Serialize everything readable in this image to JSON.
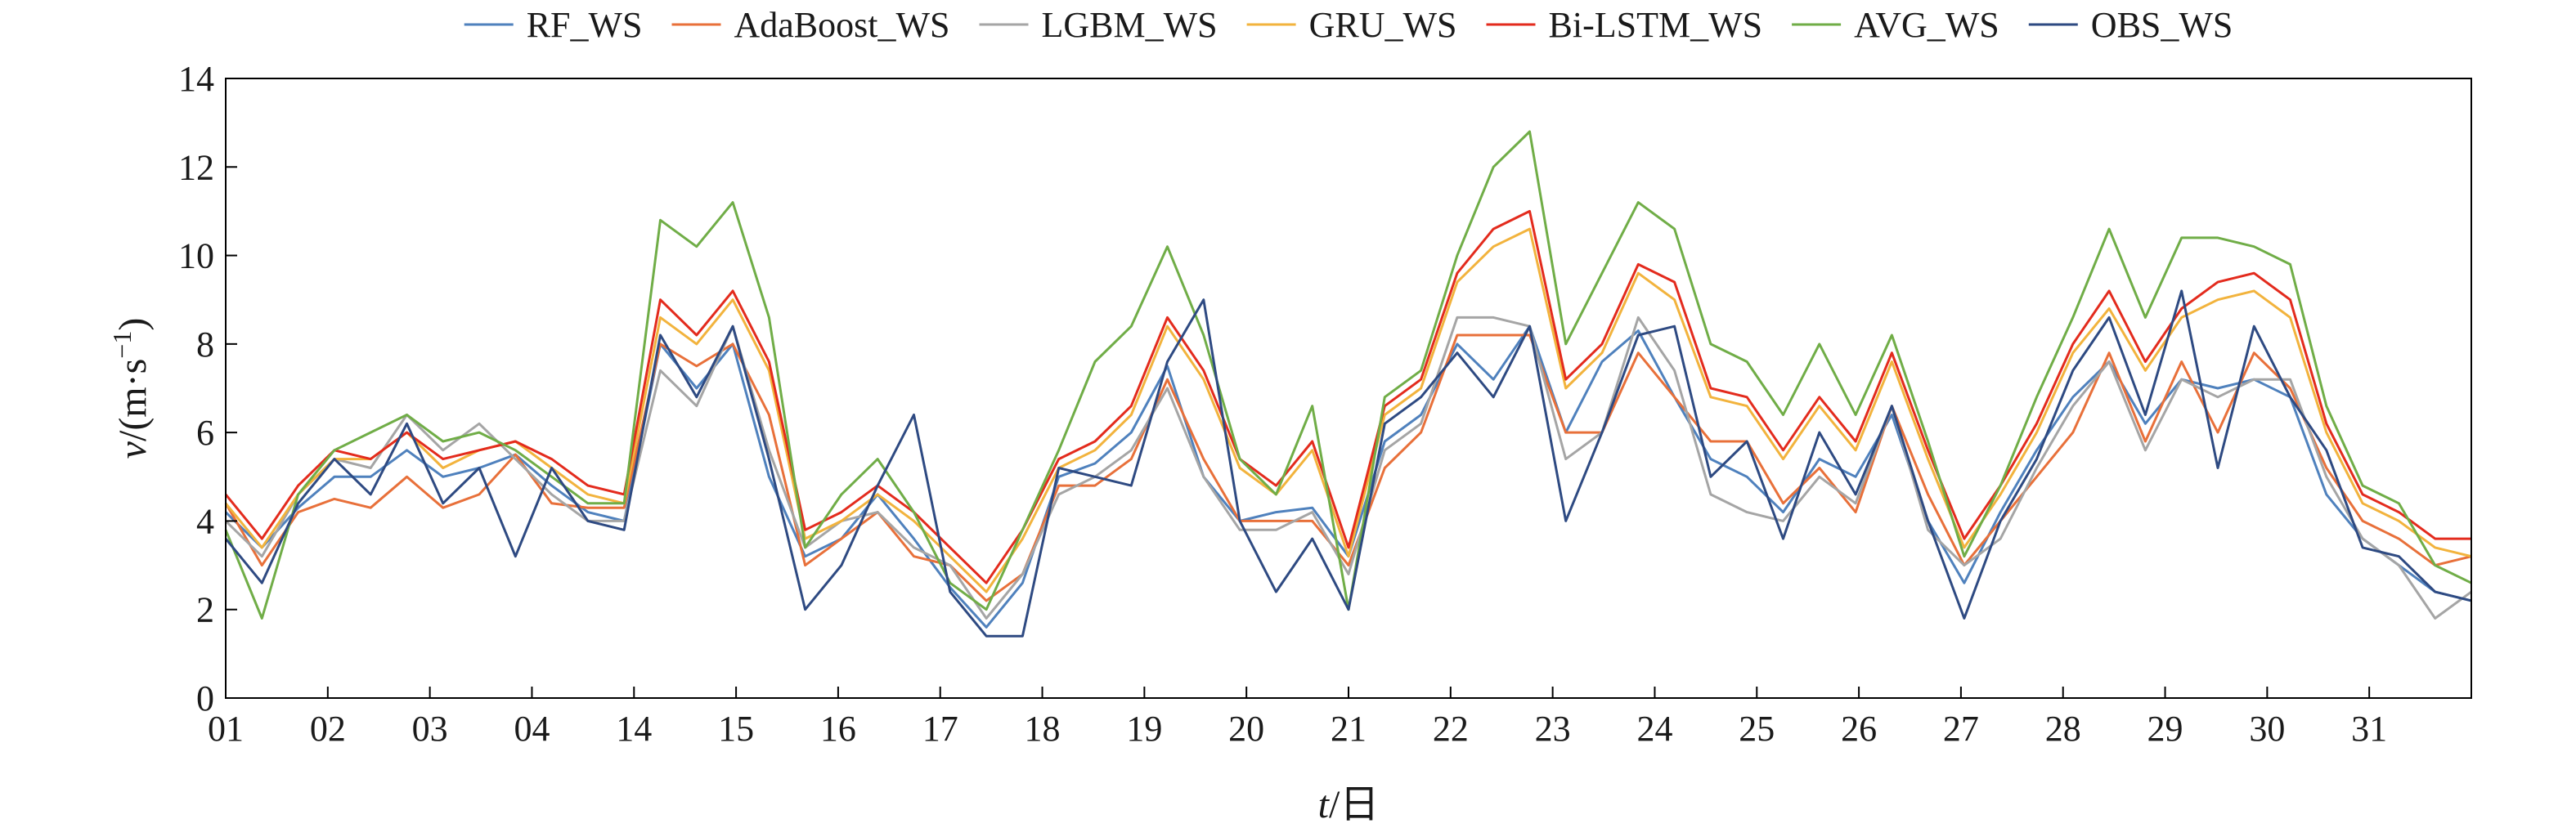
{
  "chart_data": {
    "type": "line",
    "title": "",
    "xlabel_italic": "t",
    "xlabel_suffix": "/日",
    "ylabel_italic": "v",
    "ylabel_base": "/(m·s",
    "ylabel_sup": "−1",
    "ylabel_close": ")",
    "ylim": [
      0,
      14
    ],
    "y_ticks": [
      0,
      2,
      4,
      6,
      8,
      10,
      12,
      14
    ],
    "xlim": [
      1,
      32
    ],
    "x_ticks": [
      "01",
      "02",
      "03",
      "04",
      "14",
      "15",
      "16",
      "17",
      "18",
      "19",
      "20",
      "21",
      "22",
      "23",
      "24",
      "25",
      "26",
      "27",
      "28",
      "29",
      "30",
      "31"
    ],
    "grid": false,
    "legend_position": "top",
    "series": [
      {
        "name": "RF_WS",
        "color": "#4f81bd",
        "x": [
          1,
          1.5,
          2,
          2.5,
          3,
          3.5,
          4,
          4.5,
          5,
          5.5,
          6,
          6.5,
          7,
          7.5,
          8,
          8.5,
          9,
          9.5,
          10,
          10.5,
          11,
          11.5,
          12,
          12.5,
          13,
          13.5,
          14,
          14.5,
          15,
          15.5,
          16,
          16.5,
          17,
          17.5,
          18,
          18.5,
          19,
          19.5,
          20,
          20.5,
          21,
          21.5,
          22,
          22.5,
          23,
          23.5,
          24,
          24.5,
          25,
          25.5,
          26,
          26.5,
          27,
          27.5,
          28,
          28.5,
          29,
          29.5,
          30,
          30.5,
          31,
          31.5,
          32
        ],
        "values": [
          4.2,
          3.4,
          4.3,
          5.0,
          5.0,
          5.6,
          5.0,
          5.2,
          5.5,
          4.8,
          4.2,
          4.0,
          8.0,
          7.0,
          8.0,
          5.0,
          3.2,
          3.6,
          4.6,
          3.6,
          2.5,
          1.6,
          2.6,
          5.0,
          5.3,
          6.0,
          7.5,
          5.0,
          4.0,
          4.2,
          4.3,
          3.2,
          5.8,
          6.4,
          8.0,
          7.2,
          8.4,
          6.0,
          7.6,
          8.3,
          6.8,
          5.4,
          5.0,
          4.2,
          5.4,
          5.0,
          6.4,
          4.0,
          2.6,
          4.2,
          5.6,
          6.8,
          7.6,
          6.2,
          7.2,
          7.0,
          7.2,
          6.8,
          4.6,
          3.6,
          3.0,
          2.4,
          2.2
        ]
      },
      {
        "name": "AdaBoost_WS",
        "color": "#e8703a",
        "x": [
          1,
          1.5,
          2,
          2.5,
          3,
          3.5,
          4,
          4.5,
          5,
          5.5,
          6,
          6.5,
          7,
          7.5,
          8,
          8.5,
          9,
          9.5,
          10,
          10.5,
          11,
          11.5,
          12,
          12.5,
          13,
          13.5,
          14,
          14.5,
          15,
          15.5,
          16,
          16.5,
          17,
          17.5,
          18,
          18.5,
          19,
          19.5,
          20,
          20.5,
          21,
          21.5,
          22,
          22.5,
          23,
          23.5,
          24,
          24.5,
          25,
          25.5,
          26,
          26.5,
          27,
          27.5,
          28,
          28.5,
          29,
          29.5,
          30,
          30.5,
          31,
          31.5,
          32
        ],
        "values": [
          4.4,
          3.0,
          4.2,
          4.5,
          4.3,
          5.0,
          4.3,
          4.6,
          5.5,
          4.4,
          4.3,
          4.3,
          8.0,
          7.5,
          8.0,
          6.4,
          3.0,
          3.6,
          4.2,
          3.2,
          3.0,
          2.2,
          2.8,
          4.8,
          4.8,
          5.4,
          7.2,
          5.4,
          4.0,
          4.0,
          4.0,
          3.0,
          5.2,
          6.0,
          8.2,
          8.2,
          8.2,
          6.0,
          6.0,
          7.8,
          6.8,
          5.8,
          5.8,
          4.4,
          5.2,
          4.2,
          6.6,
          4.6,
          3.0,
          4.0,
          5.0,
          6.0,
          7.8,
          5.8,
          7.6,
          6.0,
          7.8,
          7.0,
          5.2,
          4.0,
          3.6,
          3.0,
          3.2
        ]
      },
      {
        "name": "LGBM_WS",
        "color": "#a5a5a5",
        "x": [
          1,
          1.5,
          2,
          2.5,
          3,
          3.5,
          4,
          4.5,
          5,
          5.5,
          6,
          6.5,
          7,
          7.5,
          8,
          8.5,
          9,
          9.5,
          10,
          10.5,
          11,
          11.5,
          12,
          12.5,
          13,
          13.5,
          14,
          14.5,
          15,
          15.5,
          16,
          16.5,
          17,
          17.5,
          18,
          18.5,
          19,
          19.5,
          20,
          20.5,
          21,
          21.5,
          22,
          22.5,
          23,
          23.5,
          24,
          24.5,
          25,
          25.5,
          26,
          26.5,
          27,
          27.5,
          28,
          28.5,
          29,
          29.5,
          30,
          30.5,
          31,
          31.5,
          32
        ],
        "values": [
          4.0,
          3.2,
          4.6,
          5.4,
          5.2,
          6.4,
          5.6,
          6.2,
          5.4,
          4.6,
          4.0,
          4.0,
          7.4,
          6.6,
          8.4,
          5.6,
          3.4,
          4.0,
          4.2,
          3.4,
          3.0,
          1.8,
          2.8,
          4.6,
          5.0,
          5.6,
          7.0,
          5.0,
          3.8,
          3.8,
          4.2,
          2.8,
          5.6,
          6.2,
          8.6,
          8.6,
          8.4,
          5.4,
          6.0,
          8.6,
          7.4,
          4.6,
          4.2,
          4.0,
          5.0,
          4.4,
          6.6,
          3.8,
          3.0,
          3.6,
          5.2,
          6.6,
          7.6,
          5.6,
          7.2,
          6.8,
          7.2,
          7.2,
          5.0,
          3.6,
          3.0,
          1.8,
          2.4
        ]
      },
      {
        "name": "GRU_WS",
        "color": "#f2b33d",
        "x": [
          1,
          1.5,
          2,
          2.5,
          3,
          3.5,
          4,
          4.5,
          5,
          5.5,
          6,
          6.5,
          7,
          7.5,
          8,
          8.5,
          9,
          9.5,
          10,
          10.5,
          11,
          11.5,
          12,
          12.5,
          13,
          13.5,
          14,
          14.5,
          15,
          15.5,
          16,
          16.5,
          17,
          17.5,
          18,
          18.5,
          19,
          19.5,
          20,
          20.5,
          21,
          21.5,
          22,
          22.5,
          23,
          23.5,
          24,
          24.5,
          25,
          25.5,
          26,
          26.5,
          27,
          27.5,
          28,
          28.5,
          29,
          29.5,
          30,
          30.5,
          31,
          31.5,
          32
        ],
        "values": [
          4.4,
          3.4,
          4.6,
          5.4,
          5.4,
          6.0,
          5.2,
          5.6,
          5.8,
          5.2,
          4.6,
          4.4,
          8.6,
          8.0,
          9.0,
          7.4,
          3.6,
          4.0,
          4.6,
          4.0,
          3.2,
          2.4,
          3.6,
          5.2,
          5.6,
          6.4,
          8.4,
          7.2,
          5.2,
          4.6,
          5.6,
          3.2,
          6.4,
          7.0,
          9.4,
          10.2,
          10.6,
          7.0,
          7.8,
          9.6,
          9.0,
          6.8,
          6.6,
          5.4,
          6.6,
          5.6,
          7.6,
          5.4,
          3.4,
          4.6,
          6.0,
          7.8,
          8.8,
          7.4,
          8.6,
          9.0,
          9.2,
          8.6,
          6.0,
          4.4,
          4.0,
          3.4,
          3.2
        ]
      },
      {
        "name": "Bi-LSTM_WS",
        "color": "#e32b1d",
        "x": [
          1,
          1.5,
          2,
          2.5,
          3,
          3.5,
          4,
          4.5,
          5,
          5.5,
          6,
          6.5,
          7,
          7.5,
          8,
          8.5,
          9,
          9.5,
          10,
          10.5,
          11,
          11.5,
          12,
          12.5,
          13,
          13.5,
          14,
          14.5,
          15,
          15.5,
          16,
          16.5,
          17,
          17.5,
          18,
          18.5,
          19,
          19.5,
          20,
          20.5,
          21,
          21.5,
          22,
          22.5,
          23,
          23.5,
          24,
          24.5,
          25,
          25.5,
          26,
          26.5,
          27,
          27.5,
          28,
          28.5,
          29,
          29.5,
          30,
          30.5,
          31,
          31.5,
          32
        ],
        "values": [
          4.6,
          3.6,
          4.8,
          5.6,
          5.4,
          6.0,
          5.4,
          5.6,
          5.8,
          5.4,
          4.8,
          4.6,
          9.0,
          8.2,
          9.2,
          7.6,
          3.8,
          4.2,
          4.8,
          4.2,
          3.4,
          2.6,
          3.8,
          5.4,
          5.8,
          6.6,
          8.6,
          7.4,
          5.4,
          4.8,
          5.8,
          3.4,
          6.6,
          7.2,
          9.6,
          10.6,
          11.0,
          7.2,
          8.0,
          9.8,
          9.4,
          7.0,
          6.8,
          5.6,
          6.8,
          5.8,
          7.8,
          5.6,
          3.6,
          4.8,
          6.2,
          8.0,
          9.2,
          7.6,
          8.8,
          9.4,
          9.6,
          9.0,
          6.2,
          4.6,
          4.2,
          3.6,
          3.6
        ]
      },
      {
        "name": "AVG_WS",
        "color": "#70ad47",
        "x": [
          1,
          1.5,
          2,
          2.5,
          3,
          3.5,
          4,
          4.5,
          5,
          5.5,
          6,
          6.5,
          7,
          7.5,
          8,
          8.5,
          9,
          9.5,
          10,
          10.5,
          11,
          11.5,
          12,
          12.5,
          13,
          13.5,
          14,
          14.5,
          15,
          15.5,
          16,
          16.5,
          17,
          17.5,
          18,
          18.5,
          19,
          19.5,
          20,
          20.5,
          21,
          21.5,
          22,
          22.5,
          23,
          23.5,
          24,
          24.5,
          25,
          25.5,
          26,
          26.5,
          27,
          27.5,
          28,
          28.5,
          29,
          29.5,
          30,
          30.5,
          31,
          31.5,
          32
        ],
        "values": [
          3.8,
          1.8,
          4.6,
          5.6,
          6.0,
          6.4,
          5.8,
          6.0,
          5.6,
          5.0,
          4.4,
          4.4,
          10.8,
          10.2,
          11.2,
          8.6,
          3.4,
          4.6,
          5.4,
          4.2,
          2.6,
          2.0,
          3.8,
          5.6,
          7.6,
          8.4,
          10.2,
          8.2,
          5.4,
          4.6,
          6.6,
          2.0,
          6.8,
          7.4,
          10.0,
          12.0,
          12.8,
          8.0,
          9.6,
          11.2,
          10.6,
          8.0,
          7.6,
          6.4,
          8.0,
          6.4,
          8.2,
          5.8,
          3.2,
          4.8,
          6.8,
          8.6,
          10.6,
          8.6,
          10.4,
          10.4,
          10.2,
          9.8,
          6.6,
          4.8,
          4.4,
          3.0,
          2.6
        ]
      },
      {
        "name": "OBS_WS",
        "color": "#2e4a82",
        "x": [
          1,
          1.5,
          2,
          2.5,
          3,
          3.5,
          4,
          4.5,
          5,
          5.5,
          6,
          6.5,
          7,
          7.5,
          8,
          8.5,
          9,
          9.5,
          10,
          10.5,
          11,
          11.5,
          12,
          12.5,
          13,
          13.5,
          14,
          14.5,
          15,
          15.5,
          16,
          16.5,
          17,
          17.5,
          18,
          18.5,
          19,
          19.5,
          20,
          20.5,
          21,
          21.5,
          22,
          22.5,
          23,
          23.5,
          24,
          24.5,
          25,
          25.5,
          26,
          26.5,
          27,
          27.5,
          28,
          28.5,
          29,
          29.5,
          30,
          30.5,
          31,
          31.5,
          32
        ],
        "values": [
          3.6,
          2.6,
          4.4,
          5.4,
          4.6,
          6.2,
          4.4,
          5.2,
          3.2,
          5.2,
          4.0,
          3.8,
          8.2,
          6.8,
          8.4,
          5.4,
          2.0,
          3.0,
          4.8,
          6.4,
          2.4,
          1.4,
          1.4,
          5.2,
          5.0,
          4.8,
          7.6,
          9.0,
          4.0,
          2.4,
          3.6,
          2.0,
          6.2,
          6.8,
          7.8,
          6.8,
          8.4,
          4.0,
          6.0,
          8.2,
          8.4,
          5.0,
          5.8,
          3.6,
          6.0,
          4.6,
          6.6,
          4.0,
          1.8,
          4.0,
          5.4,
          7.4,
          8.6,
          6.4,
          9.2,
          5.2,
          8.4,
          6.8,
          5.6,
          3.4,
          3.2,
          2.4,
          2.2
        ]
      }
    ]
  }
}
